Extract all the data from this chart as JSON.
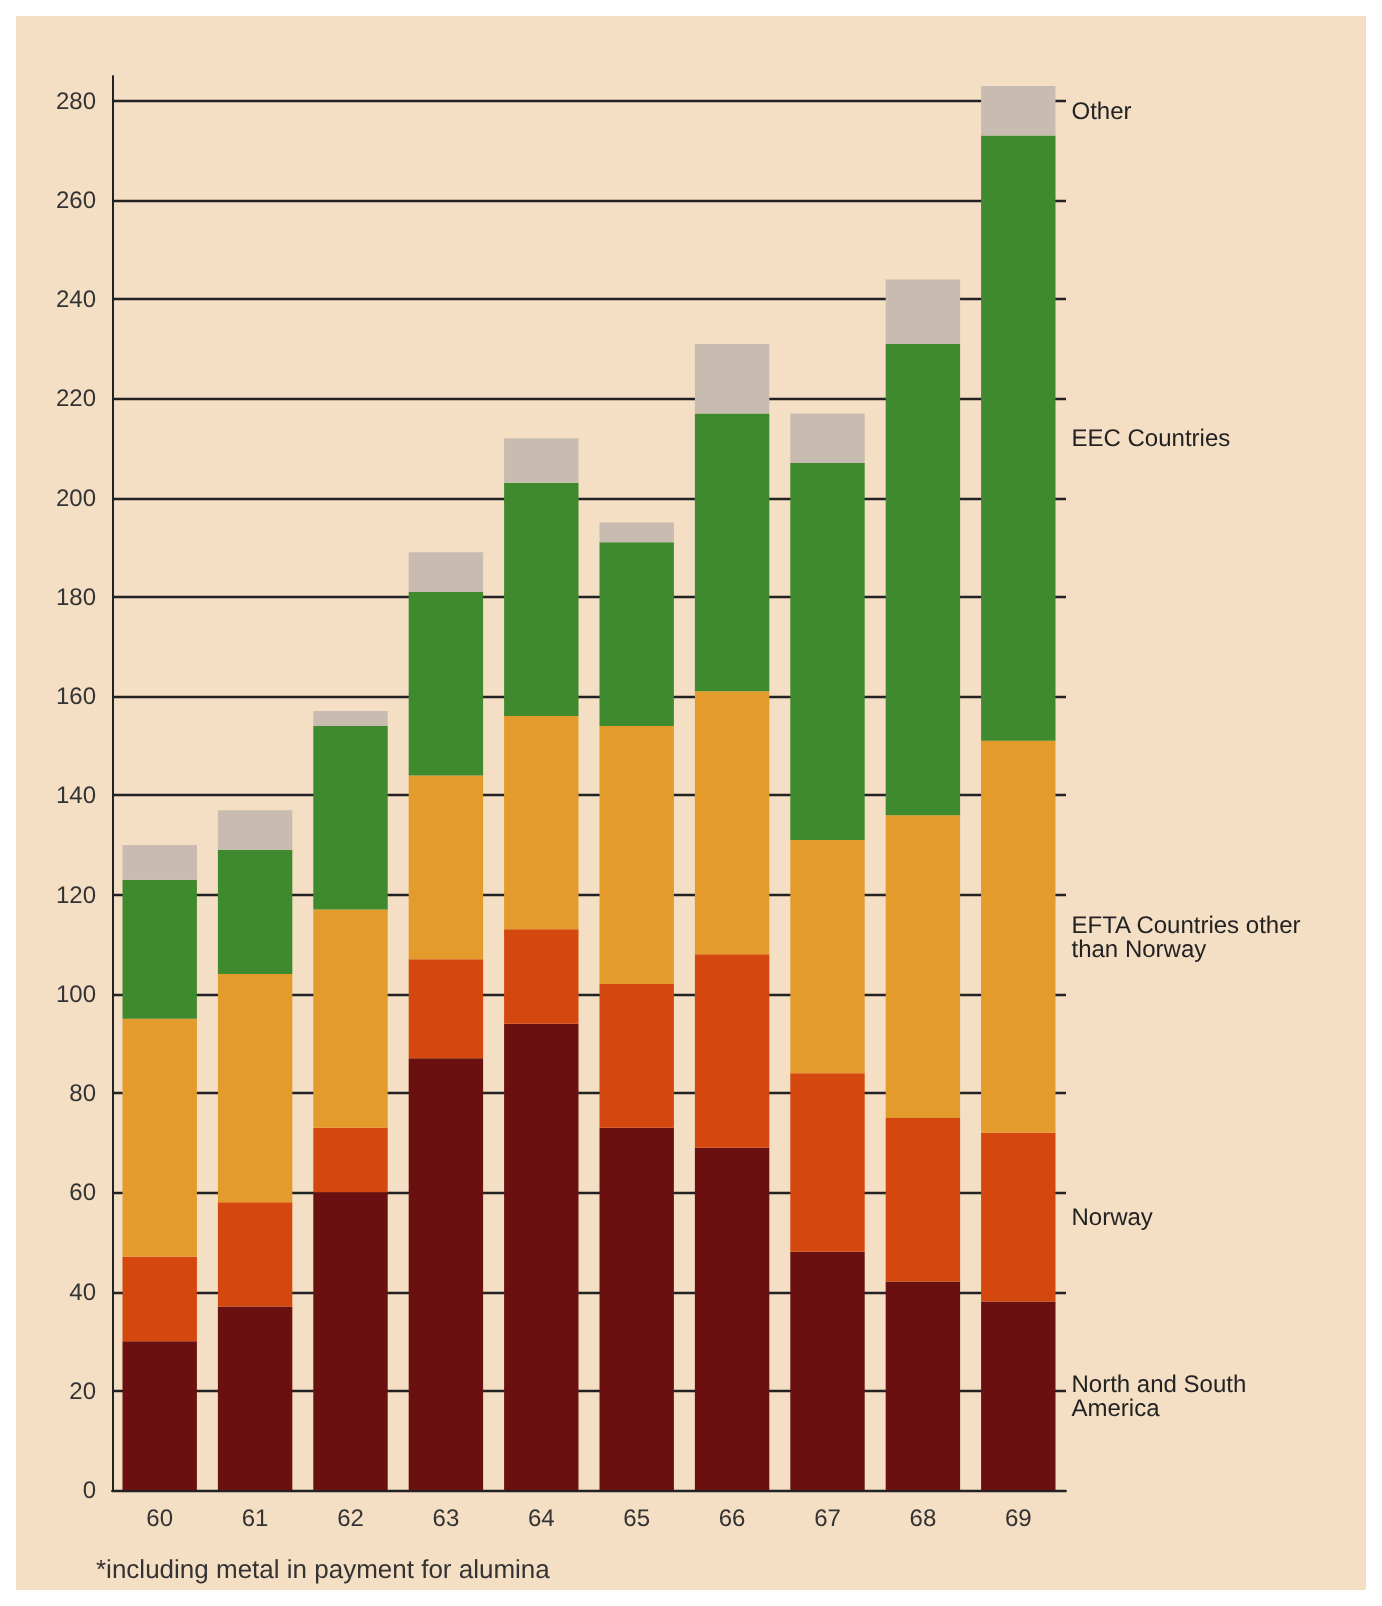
{
  "chart_data": {
    "type": "bar",
    "stacked": true,
    "categories": [
      "60",
      "61",
      "62",
      "63",
      "64",
      "65",
      "66",
      "67",
      "68",
      "69"
    ],
    "series": [
      {
        "name": "North and South America",
        "color": "#6b1010",
        "values": [
          30,
          37,
          60,
          87,
          94,
          73,
          69,
          48,
          42,
          38
        ]
      },
      {
        "name": "Norway",
        "color": "#d4480f",
        "values": [
          17,
          21,
          13,
          20,
          19,
          29,
          39,
          36,
          33,
          34
        ]
      },
      {
        "name": "EFTA Countries other than Norway",
        "color": "#e39b2c",
        "values": [
          48,
          46,
          44,
          37,
          43,
          52,
          53,
          47,
          61,
          79
        ]
      },
      {
        "name": "EEC Countries",
        "color": "#3f8a2e",
        "values": [
          28,
          25,
          37,
          37,
          47,
          37,
          56,
          76,
          95,
          122
        ]
      },
      {
        "name": "Other",
        "color": "#c8bcb0",
        "values": [
          7,
          8,
          3,
          8,
          9,
          4,
          14,
          10,
          13,
          10
        ]
      }
    ],
    "ylim": [
      0,
      285
    ],
    "yticks": [
      0,
      20,
      40,
      60,
      80,
      100,
      120,
      140,
      160,
      180,
      200,
      220,
      240,
      260,
      280
    ],
    "grid": "y",
    "annotations": [
      "*including metal in payment for alumina"
    ]
  }
}
